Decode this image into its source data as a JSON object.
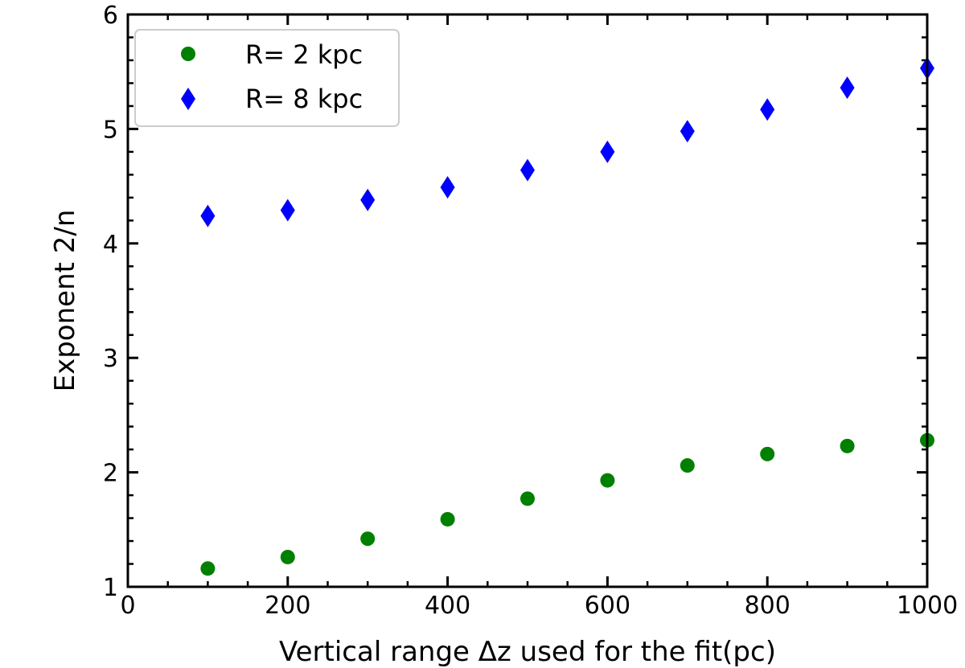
{
  "chart_data": {
    "type": "scatter",
    "xlabel": "Vertical range Δz used for the fit(pc)",
    "ylabel": "Exponent 2/n",
    "xlim": [
      0,
      1000
    ],
    "ylim": [
      1,
      6
    ],
    "xticks": [
      0,
      200,
      400,
      600,
      800,
      1000
    ],
    "yticks": [
      1,
      2,
      3,
      4,
      5,
      6
    ],
    "x_minor_step": 50,
    "y_minor_step": 0.2,
    "grid": false,
    "legend_position": "upper-left",
    "series": [
      {
        "name": "R= 2 kpc",
        "marker": "circle",
        "color": "#008000",
        "x": [
          100,
          200,
          300,
          400,
          500,
          600,
          700,
          800,
          900,
          1000
        ],
        "y": [
          1.16,
          1.26,
          1.42,
          1.59,
          1.77,
          1.93,
          2.06,
          2.16,
          2.23,
          2.28
        ]
      },
      {
        "name": "R= 8 kpc",
        "marker": "diamond",
        "color": "#0000ff",
        "x": [
          100,
          200,
          300,
          400,
          500,
          600,
          700,
          800,
          900,
          1000
        ],
        "y": [
          4.24,
          4.29,
          4.38,
          4.49,
          4.64,
          4.8,
          4.98,
          5.17,
          5.36,
          5.53
        ]
      }
    ]
  }
}
